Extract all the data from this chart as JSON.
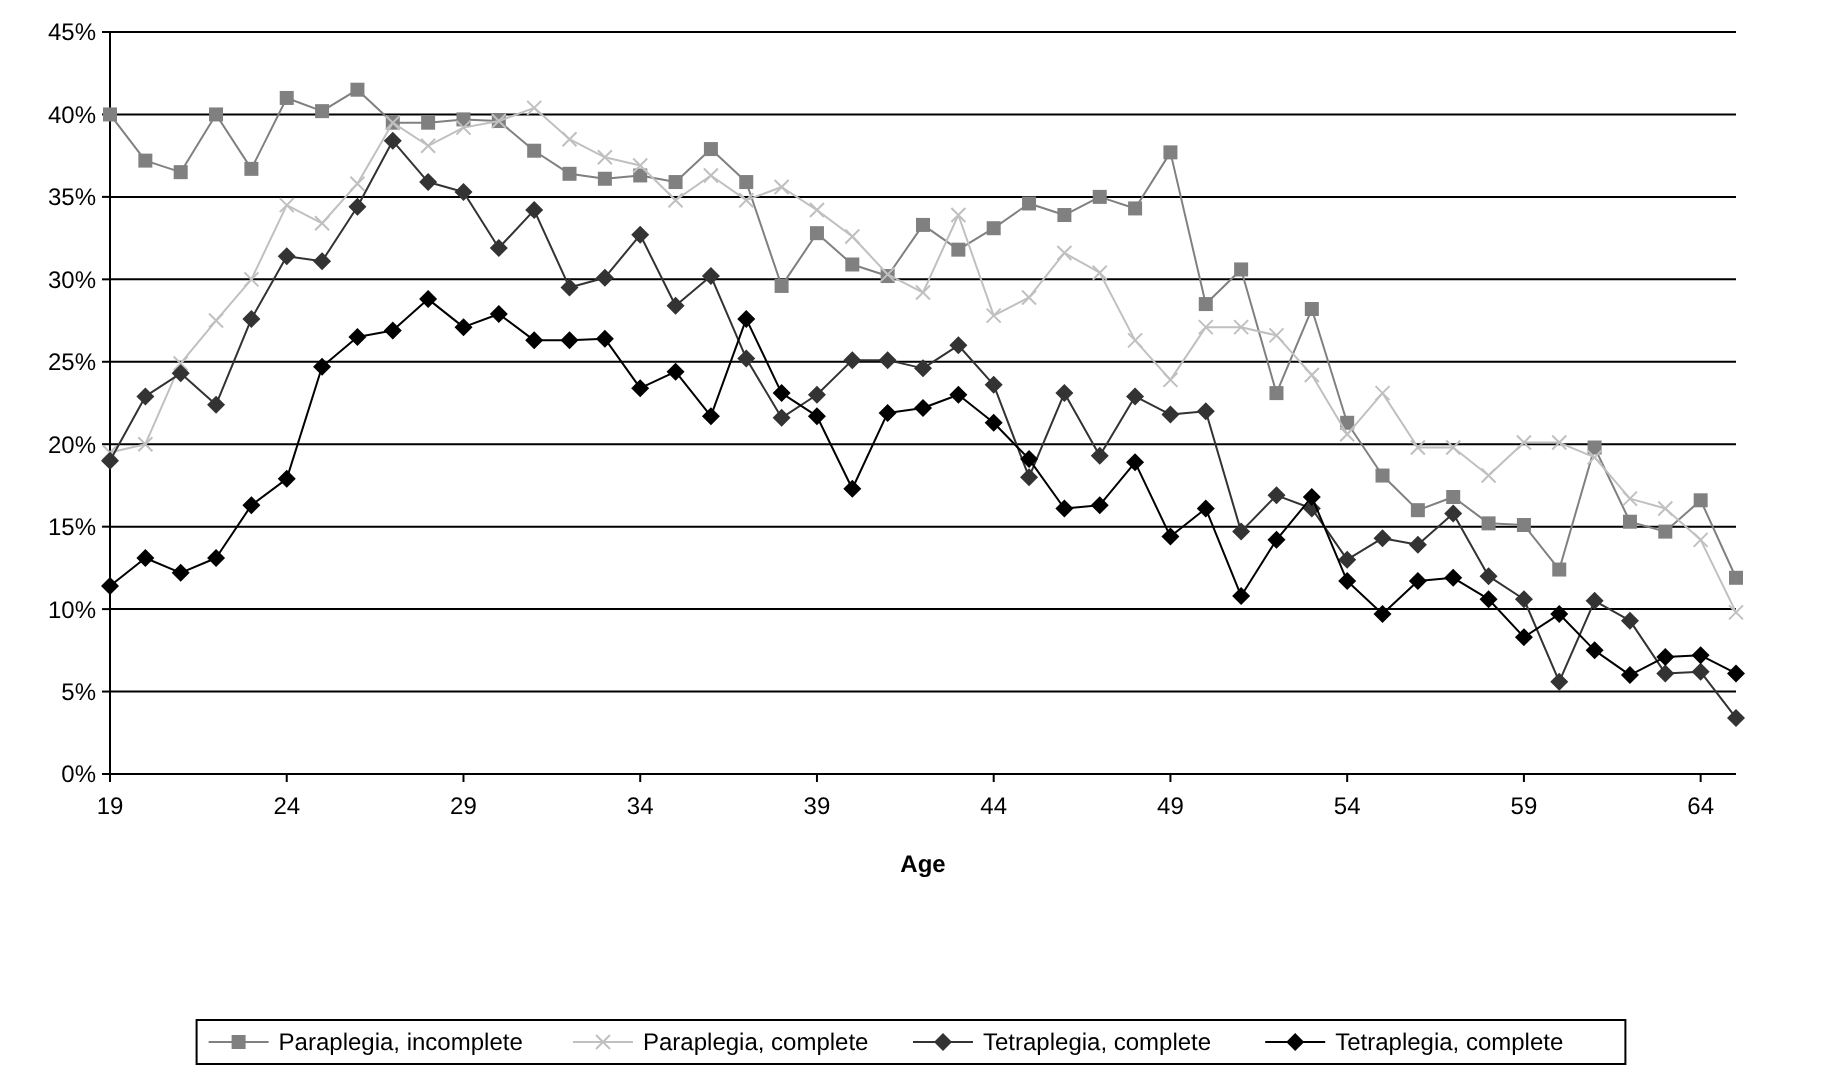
{
  "chart_data": {
    "type": "line",
    "xlabel": "Age",
    "x": [
      19,
      20,
      21,
      22,
      23,
      24,
      25,
      26,
      27,
      28,
      29,
      30,
      31,
      32,
      33,
      34,
      35,
      36,
      37,
      38,
      39,
      40,
      41,
      42,
      43,
      44,
      45,
      46,
      47,
      48,
      49,
      50,
      51,
      52,
      53,
      54,
      55,
      56,
      57,
      58,
      59,
      60,
      61,
      62,
      63,
      64,
      65
    ],
    "xlim": [
      19,
      65
    ],
    "xticks": [
      19,
      24,
      29,
      34,
      39,
      44,
      49,
      54,
      59,
      64
    ],
    "ylim": [
      0,
      45
    ],
    "yticks": [
      {
        "value": 0,
        "label": "0%"
      },
      {
        "value": 5,
        "label": "5%"
      },
      {
        "value": 10,
        "label": "10%"
      },
      {
        "value": 15,
        "label": "15%"
      },
      {
        "value": 20,
        "label": "20%"
      },
      {
        "value": 25,
        "label": "25%"
      },
      {
        "value": 30,
        "label": "30%"
      },
      {
        "value": 35,
        "label": "35%"
      },
      {
        "value": 40,
        "label": "40%"
      },
      {
        "value": 45,
        "label": "45%"
      }
    ],
    "grid": "y",
    "legend": "bottom",
    "line_style": "solid",
    "series": [
      {
        "name": "Paraplegia, incomplete",
        "color": "#808080",
        "marker": "square",
        "values": [
          40.0,
          37.2,
          36.5,
          40.0,
          36.7,
          41.0,
          40.2,
          41.5,
          39.5,
          39.5,
          39.7,
          39.6,
          37.8,
          36.4,
          36.1,
          36.3,
          35.9,
          37.9,
          35.9,
          29.6,
          32.8,
          30.9,
          30.2,
          33.3,
          31.8,
          33.1,
          34.6,
          33.9,
          35.0,
          34.3,
          37.7,
          28.5,
          30.6,
          23.1,
          28.2,
          21.3,
          18.1,
          16.0,
          16.8,
          15.2,
          15.1,
          12.4,
          19.8,
          15.3,
          14.7,
          16.6,
          11.9
        ]
      },
      {
        "name": "Paraplegia, complete",
        "color": "#c0c0c0",
        "marker": "cross",
        "values": [
          19.5,
          20.0,
          24.9,
          27.5,
          30.0,
          34.5,
          33.4,
          35.8,
          39.5,
          38.1,
          39.2,
          39.6,
          40.4,
          38.5,
          37.4,
          36.9,
          34.8,
          36.3,
          34.8,
          35.6,
          34.2,
          32.6,
          30.3,
          29.2,
          33.9,
          27.8,
          28.9,
          31.6,
          30.4,
          26.3,
          23.9,
          27.1,
          27.1,
          26.6,
          24.2,
          20.6,
          23.1,
          19.8,
          19.8,
          18.1,
          20.1,
          20.1,
          19.2,
          16.7,
          16.1,
          14.2,
          9.8
        ]
      },
      {
        "name": "Tetraplegia, complete",
        "color": "#333333",
        "marker": "diamond",
        "values": [
          19.0,
          22.9,
          24.3,
          22.4,
          27.6,
          31.4,
          31.1,
          34.4,
          38.4,
          35.9,
          35.3,
          31.9,
          34.2,
          29.5,
          30.1,
          32.7,
          28.4,
          30.2,
          25.2,
          21.6,
          23.0,
          25.1,
          25.1,
          24.6,
          26.0,
          23.6,
          18.0,
          23.1,
          19.3,
          22.9,
          21.8,
          22.0,
          14.7,
          16.9,
          16.1,
          13.0,
          14.3,
          13.9,
          15.8,
          12.0,
          10.6,
          5.6,
          10.5,
          9.3,
          6.1,
          6.2,
          3.4
        ]
      },
      {
        "name": "Tetraplegia, complete",
        "color": "#000000",
        "marker": "diamond",
        "values": [
          11.4,
          13.1,
          12.2,
          13.1,
          16.3,
          17.9,
          24.7,
          26.5,
          26.9,
          28.8,
          27.1,
          27.9,
          26.3,
          26.3,
          26.4,
          23.4,
          24.4,
          21.7,
          27.6,
          23.1,
          21.7,
          17.3,
          21.9,
          22.2,
          23.0,
          21.3,
          19.1,
          16.1,
          16.3,
          18.9,
          14.4,
          16.1,
          10.8,
          14.2,
          16.8,
          11.7,
          9.7,
          11.7,
          11.9,
          10.6,
          8.3,
          9.7,
          7.5,
          6.0,
          7.1,
          7.2,
          6.1
        ]
      }
    ]
  }
}
